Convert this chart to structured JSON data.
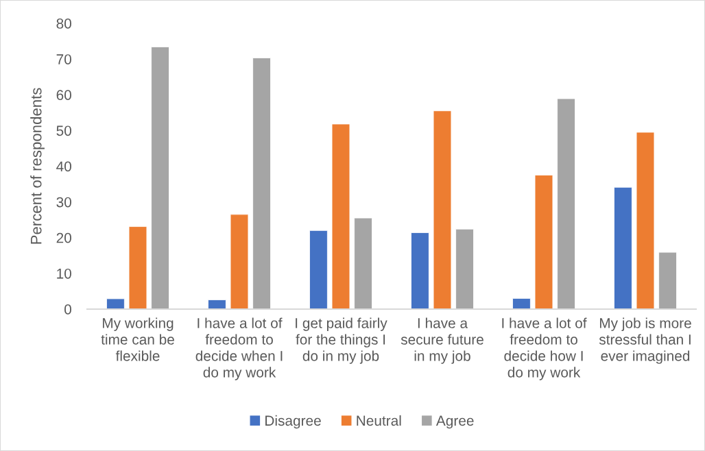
{
  "chart_data": {
    "type": "bar",
    "ylabel": "Percent of respondents",
    "categories": [
      "My working time can be flexible",
      "I have a lot of freedom to decide when I do my work",
      "I get paid fairly for the things I do in my job",
      "I have a secure future in my job",
      "I have a lot of freedom to decide how I do my work",
      "My job is more stressful than I ever imagined"
    ],
    "series": [
      {
        "name": "Disagree",
        "color": "#4472c4",
        "values": [
          2.9,
          2.6,
          22.0,
          21.4,
          3.0,
          34.1
        ]
      },
      {
        "name": "Neutral",
        "color": "#ed7d31",
        "values": [
          23.1,
          26.5,
          51.8,
          55.5,
          37.5,
          49.5
        ]
      },
      {
        "name": "Agree",
        "color": "#a5a5a5",
        "values": [
          73.4,
          70.3,
          25.5,
          22.4,
          58.9,
          15.9
        ]
      }
    ],
    "ylim": [
      0,
      80
    ],
    "yticks": [
      0,
      10,
      20,
      30,
      40,
      50,
      60,
      70,
      80
    ],
    "legend": "bottom"
  }
}
